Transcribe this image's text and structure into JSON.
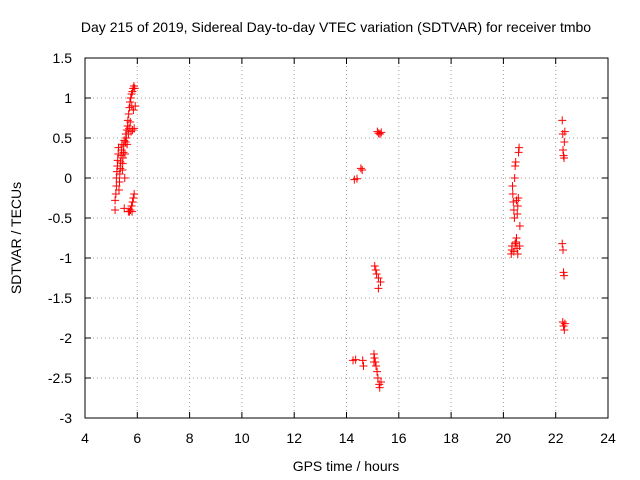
{
  "chart_data": {
    "type": "scatter",
    "title": "Day 215 of 2019, Sidereal Day-to-day VTEC variation (SDTVAR) for receiver tmbo",
    "xlabel": "GPS time / hours",
    "ylabel": "SDTVAR / TECUs",
    "xlim": [
      4,
      24
    ],
    "ylim": [
      -3,
      1.5
    ],
    "xticks": [
      4,
      6,
      8,
      10,
      12,
      14,
      16,
      18,
      20,
      22,
      24
    ],
    "yticks": [
      -3,
      -2.5,
      -2,
      -1.5,
      -1,
      -0.5,
      0,
      0.5,
      1,
      1.5
    ],
    "grid": true,
    "marker": "+",
    "color": "#ff0000",
    "series": [
      {
        "name": "SDTVAR",
        "points": [
          [
            5.15,
            -0.4
          ],
          [
            5.15,
            -0.28
          ],
          [
            5.18,
            -0.2
          ],
          [
            5.2,
            -0.1
          ],
          [
            5.2,
            0.0
          ],
          [
            5.22,
            0.08
          ],
          [
            5.24,
            0.15
          ],
          [
            5.25,
            0.22
          ],
          [
            5.27,
            0.3
          ],
          [
            5.28,
            0.38
          ],
          [
            5.3,
            -0.15
          ],
          [
            5.32,
            -0.05
          ],
          [
            5.33,
            0.05
          ],
          [
            5.35,
            0.12
          ],
          [
            5.36,
            0.2
          ],
          [
            5.38,
            0.28
          ],
          [
            5.4,
            0.35
          ],
          [
            5.41,
            0.42
          ],
          [
            5.43,
            0.1
          ],
          [
            5.44,
            0.18
          ],
          [
            5.45,
            0.25
          ],
          [
            5.47,
            0.32
          ],
          [
            5.48,
            0.4
          ],
          [
            5.5,
            0.47
          ],
          [
            5.5,
            -0.38
          ],
          [
            5.52,
            0.0
          ],
          [
            5.53,
            0.3
          ],
          [
            5.55,
            0.45
          ],
          [
            5.56,
            0.55
          ],
          [
            5.58,
            0.5
          ],
          [
            5.6,
            0.6
          ],
          [
            5.61,
            0.42
          ],
          [
            5.63,
            0.65
          ],
          [
            5.64,
            0.72
          ],
          [
            5.66,
            0.55
          ],
          [
            5.67,
            0.8
          ],
          [
            5.69,
            0.62
          ],
          [
            5.7,
            0.88
          ],
          [
            5.72,
            0.95
          ],
          [
            5.73,
            0.7
          ],
          [
            5.75,
            1.0
          ],
          [
            5.76,
            0.58
          ],
          [
            5.78,
            1.05
          ],
          [
            5.79,
            0.9
          ],
          [
            5.81,
            1.08
          ],
          [
            5.82,
            0.6
          ],
          [
            5.84,
            1.12
          ],
          [
            5.85,
            0.85
          ],
          [
            5.87,
            1.15
          ],
          [
            5.88,
            0.62
          ],
          [
            5.9,
            1.12
          ],
          [
            5.92,
            0.9
          ],
          [
            5.7,
            -0.42
          ],
          [
            5.74,
            -0.4
          ],
          [
            5.78,
            -0.35
          ],
          [
            5.82,
            -0.3
          ],
          [
            5.85,
            -0.25
          ],
          [
            5.88,
            -0.2
          ],
          [
            5.66,
            -0.42
          ],
          [
            5.8,
            -0.42
          ],
          [
            14.25,
            -2.28
          ],
          [
            14.3,
            -0.02
          ],
          [
            14.35,
            -2.27
          ],
          [
            14.4,
            -0.01
          ],
          [
            14.55,
            0.12
          ],
          [
            14.6,
            0.1
          ],
          [
            14.62,
            -2.28
          ],
          [
            14.65,
            -2.35
          ],
          [
            15.05,
            -2.2
          ],
          [
            15.07,
            -2.25
          ],
          [
            15.08,
            -1.1
          ],
          [
            15.1,
            -2.3
          ],
          [
            15.12,
            -1.15
          ],
          [
            15.13,
            -2.35
          ],
          [
            15.15,
            -1.2
          ],
          [
            15.17,
            -2.42
          ],
          [
            15.18,
            0.58
          ],
          [
            15.2,
            -2.5
          ],
          [
            15.22,
            -1.25
          ],
          [
            15.23,
            0.56
          ],
          [
            15.25,
            -2.58
          ],
          [
            15.27,
            -2.62
          ],
          [
            15.28,
            0.55
          ],
          [
            15.3,
            -1.3
          ],
          [
            15.32,
            -2.55
          ],
          [
            15.33,
            0.57
          ],
          [
            15.22,
            -1.38
          ],
          [
            15.05,
            -2.3
          ],
          [
            20.3,
            -0.95
          ],
          [
            20.32,
            -0.9
          ],
          [
            20.33,
            -0.85
          ],
          [
            20.35,
            -0.1
          ],
          [
            20.36,
            -0.2
          ],
          [
            20.38,
            -0.3
          ],
          [
            20.4,
            -0.4
          ],
          [
            20.42,
            -0.5
          ],
          [
            20.43,
            0.0
          ],
          [
            20.45,
            0.15
          ],
          [
            20.47,
            0.2
          ],
          [
            20.48,
            -0.8
          ],
          [
            20.5,
            -0.75
          ],
          [
            20.52,
            -0.88
          ],
          [
            20.53,
            -0.45
          ],
          [
            20.55,
            -0.35
          ],
          [
            20.57,
            -0.25
          ],
          [
            20.58,
            0.32
          ],
          [
            20.6,
            0.38
          ],
          [
            20.62,
            -0.85
          ],
          [
            20.63,
            -0.6
          ],
          [
            20.4,
            -0.92
          ],
          [
            20.45,
            -0.82
          ],
          [
            20.55,
            -0.95
          ],
          [
            20.5,
            -0.28
          ],
          [
            22.25,
            0.72
          ],
          [
            22.27,
            0.55
          ],
          [
            22.28,
            0.35
          ],
          [
            22.3,
            0.28
          ],
          [
            22.32,
            0.25
          ],
          [
            22.33,
            0.45
          ],
          [
            22.35,
            0.58
          ],
          [
            22.25,
            -0.82
          ],
          [
            22.28,
            -0.9
          ],
          [
            22.3,
            -1.18
          ],
          [
            22.32,
            -1.22
          ],
          [
            22.27,
            -1.8
          ],
          [
            22.3,
            -1.85
          ],
          [
            22.33,
            -1.9
          ],
          [
            22.35,
            -1.82
          ]
        ]
      }
    ]
  }
}
